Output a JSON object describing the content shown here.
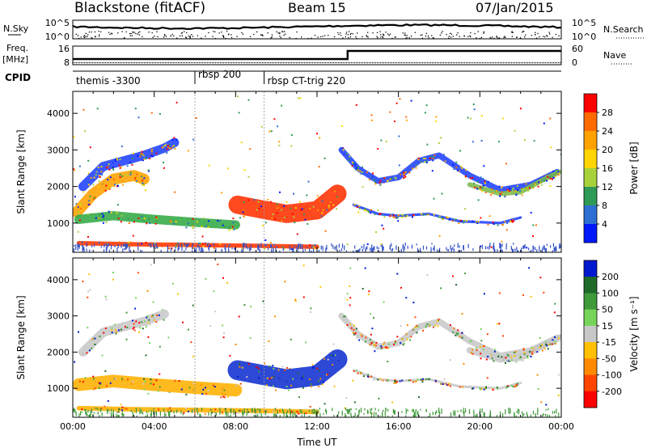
{
  "header": {
    "title": "Blackstone (fitACF)",
    "beam": "Beam 15",
    "date": "07/Jan/2015"
  },
  "aux_panels": {
    "nsky_label": "N.Sky",
    "nsky_ticks": [
      "10^5",
      "10^0"
    ],
    "nsearch_label": "N.Search",
    "nsearch_ticks": [
      "10^5",
      "10^0"
    ],
    "freq_label": "Freq.",
    "freq_unit": "[MHz]",
    "freq_ticks": [
      "16",
      "8"
    ],
    "nave_label": "Nave",
    "nave_ticks": [
      "60",
      "0"
    ],
    "cpid_label": "CPID",
    "cpid_segments": [
      {
        "label": "themis -3300",
        "start_hour": 0.0,
        "end_hour": 6.0
      },
      {
        "label": "rbsp 200",
        "start_hour": 6.0,
        "end_hour": 9.4
      },
      {
        "label": "rbsp CT-trig 220",
        "start_hour": 9.4,
        "end_hour": 24.0
      }
    ]
  },
  "chart_data": [
    {
      "type": "heatmap",
      "name": "power",
      "ylabel": "Slant Range [km]",
      "xlabel": "",
      "xlim": [
        0,
        24
      ],
      "ylim": [
        200,
        4600
      ],
      "yticks": [
        "1000",
        "2000",
        "3000",
        "4000"
      ],
      "colorbar": {
        "label": "Power [dB]",
        "ticks": [
          "28",
          "24",
          "20",
          "16",
          "12",
          "8",
          "4"
        ],
        "colors": [
          "#ff0000",
          "#ff6a00",
          "#ffa200",
          "#ffd400",
          "#a8d23a",
          "#2f9a55",
          "#2d6fd2",
          "#0018ff"
        ]
      },
      "bands": [
        {
          "points": [
            [
              0.5,
              2000
            ],
            [
              1.5,
              2550
            ],
            [
              2.5,
              2700
            ],
            [
              3.5,
              2850
            ],
            [
              4.5,
              3050
            ],
            [
              5.0,
              3200
            ]
          ],
          "width": 250,
          "color": "#2040ff"
        },
        {
          "points": [
            [
              0.2,
              1300
            ],
            [
              1.0,
              1800
            ],
            [
              2.0,
              2200
            ],
            [
              3.0,
              2300
            ],
            [
              3.5,
              2200
            ]
          ],
          "width": 300,
          "color": "#ffa200"
        },
        {
          "points": [
            [
              0.3,
              1100
            ],
            [
              2.0,
              1200
            ],
            [
              4.0,
              1100
            ],
            [
              6.5,
              1000
            ],
            [
              8.0,
              950
            ]
          ],
          "width": 250,
          "color": "#33aa44"
        },
        {
          "points": [
            [
              0.3,
              450
            ],
            [
              3.0,
              420
            ],
            [
              6.0,
              400
            ],
            [
              9.0,
              380
            ],
            [
              12.0,
              350
            ]
          ],
          "width": 120,
          "color": "#ff3300"
        },
        {
          "points": [
            [
              8.1,
              1500
            ],
            [
              9.5,
              1350
            ],
            [
              10.5,
              1250
            ],
            [
              12.0,
              1350
            ],
            [
              13.0,
              1800
            ]
          ],
          "width": 500,
          "color": "#ff3000"
        },
        {
          "points": [
            [
              13.2,
              3000
            ],
            [
              14.0,
              2500
            ],
            [
              15.0,
              2150
            ],
            [
              16.0,
              2250
            ],
            [
              17.0,
              2700
            ],
            [
              18.0,
              2850
            ],
            [
              19.5,
              2300
            ],
            [
              21.0,
              1900
            ],
            [
              22.5,
              2050
            ],
            [
              23.8,
              2400
            ]
          ],
          "width": 160,
          "color": "#2040ff"
        },
        {
          "points": [
            [
              13.8,
              1500
            ],
            [
              15.0,
              1250
            ],
            [
              16.0,
              1200
            ],
            [
              17.5,
              1250
            ],
            [
              19.0,
              1050
            ],
            [
              21.0,
              1000
            ],
            [
              22.0,
              1150
            ]
          ],
          "width": 70,
          "color": "#2040ff"
        },
        {
          "points": [
            [
              19.5,
              2050
            ],
            [
              21.0,
              1800
            ],
            [
              22.0,
              1850
            ],
            [
              23.0,
              2150
            ],
            [
              23.9,
              2400
            ]
          ],
          "width": 130,
          "color": "#7ab84a"
        }
      ]
    },
    {
      "type": "heatmap",
      "name": "velocity",
      "ylabel": "Slant Range [km]",
      "xlabel": "Time UT",
      "xlim": [
        0,
        24
      ],
      "ylim": [
        200,
        4600
      ],
      "xticks": [
        "00:00",
        "04:00",
        "08:00",
        "12:00",
        "16:00",
        "20:00",
        "00:00"
      ],
      "yticks": [
        "1000",
        "2000",
        "3000",
        "4000"
      ],
      "colorbar": {
        "label": "Velocity [m s⁻¹]",
        "ticks": [
          "200",
          "100",
          "50",
          "15",
          "-15",
          "-50",
          "-100",
          "-200"
        ],
        "colors": [
          "#0018d0",
          "#1f6a28",
          "#3f9a3a",
          "#77d45a",
          "#c8c8c8",
          "#ffc000",
          "#ff8a00",
          "#ff4400",
          "#ff0000"
        ]
      },
      "bands": [
        {
          "points": [
            [
              0.5,
              2000
            ],
            [
              1.5,
              2550
            ],
            [
              2.5,
              2700
            ],
            [
              3.5,
              2850
            ],
            [
              4.5,
              3050
            ]
          ],
          "width": 250,
          "color": "#c8c8c8"
        },
        {
          "points": [
            [
              0.3,
              1100
            ],
            [
              2.0,
              1200
            ],
            [
              4.0,
              1100
            ],
            [
              6.5,
              1000
            ],
            [
              8.0,
              950
            ]
          ],
          "width": 350,
          "color": "#ffb000"
        },
        {
          "points": [
            [
              0.3,
              450
            ],
            [
              3.0,
              420
            ],
            [
              6.0,
              400
            ],
            [
              9.0,
              380
            ],
            [
              12.0,
              350
            ]
          ],
          "width": 130,
          "color": "#ffb000"
        },
        {
          "points": [
            [
              8.1,
              1500
            ],
            [
              9.5,
              1350
            ],
            [
              10.5,
              1250
            ],
            [
              12.0,
              1350
            ],
            [
              13.0,
              1800
            ]
          ],
          "width": 550,
          "color": "#1030d0"
        },
        {
          "points": [
            [
              13.2,
              3000
            ],
            [
              14.0,
              2500
            ],
            [
              15.0,
              2150
            ],
            [
              16.0,
              2250
            ],
            [
              17.0,
              2700
            ],
            [
              18.0,
              2850
            ],
            [
              19.5,
              2300
            ],
            [
              21.0,
              1900
            ],
            [
              22.5,
              2050
            ],
            [
              23.8,
              2400
            ]
          ],
          "width": 170,
          "color": "#c8c8c8"
        },
        {
          "points": [
            [
              13.8,
              1500
            ],
            [
              15.0,
              1250
            ],
            [
              16.0,
              1200
            ],
            [
              17.5,
              1250
            ],
            [
              19.0,
              1050
            ],
            [
              21.0,
              1000
            ],
            [
              22.0,
              1150
            ]
          ],
          "width": 70,
          "color": "#c8c8c8"
        },
        {
          "points": [
            [
              19.5,
              2050
            ],
            [
              21.0,
              1800
            ],
            [
              22.0,
              1850
            ],
            [
              23.0,
              2150
            ],
            [
              23.9,
              2400
            ]
          ],
          "width": 180,
          "color": "#c8c8c8"
        }
      ]
    }
  ]
}
